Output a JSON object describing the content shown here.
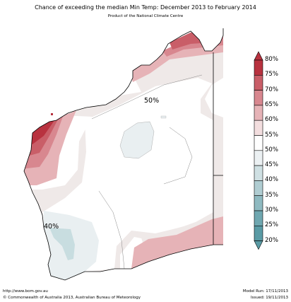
{
  "title": "Chance of exceeding the median Min Temp: December 2013 to February 2014",
  "subtitle": "Product of the National Climate Centre",
  "map_labels": {
    "center": "50%",
    "southwest": "40%"
  },
  "legend": {
    "labels": [
      "80%",
      "75%",
      "70%",
      "65%",
      "60%",
      "55%",
      "50%",
      "45%",
      "40%",
      "35%",
      "30%",
      "25%",
      "20%"
    ],
    "colors": [
      "#b8323f",
      "#c95e68",
      "#d8878f",
      "#e6b3b7",
      "#f3dedf",
      "#ffffff",
      "#ffffff",
      "#ecf1f3",
      "#cfe0e3",
      "#b0cdd2",
      "#8fbac1",
      "#6fa7b0",
      "#5a9ba5"
    ]
  },
  "colors": {
    "p80": "#b8323f",
    "p75": "#c95e68",
    "p70": "#d8878f",
    "p65": "#e6b3b7",
    "p60": "#efe9e8",
    "p45": "#e9eff1",
    "p40": "#c8dde0"
  },
  "footer": {
    "url": "http://www.bom.gov.au",
    "copyright": "©  Commonwealth of Australia 2013, Australian Bureau of Meteorology",
    "model_run": "Model Run: 17/11/2013",
    "issued": "Issued: 19/11/2013"
  }
}
